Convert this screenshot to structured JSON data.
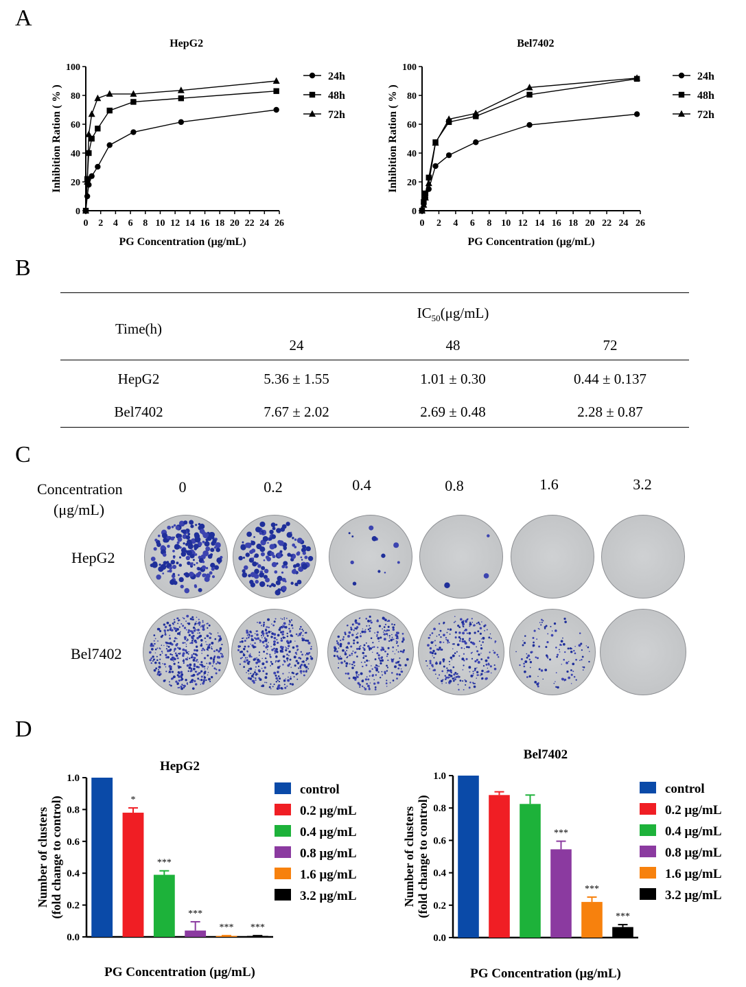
{
  "panels": {
    "a": "A",
    "b": "B",
    "c": "C",
    "d": "D"
  },
  "panel_a": {
    "ylabel": "Inhibition Ration ( % )",
    "xlabel": "PG Concentration (μg/mL)",
    "charts": [
      {
        "title": "HepG2",
        "series": [
          {
            "name": "24h",
            "marker": "circle",
            "x": [
              0,
              0.2,
              0.4,
              0.8,
              1.6,
              3.2,
              6.4,
              12.8,
              25.6
            ],
            "y": [
              0,
              10,
              18,
              24,
              30.5,
              45.5,
              54.5,
              61.5,
              70
            ]
          },
          {
            "name": "48h",
            "marker": "square",
            "x": [
              0,
              0.2,
              0.4,
              0.8,
              1.6,
              3.2,
              6.4,
              12.8,
              25.6
            ],
            "y": [
              0,
              22,
              40,
              50,
              57,
              69.5,
              75.5,
              78,
              83
            ]
          },
          {
            "name": "72h",
            "marker": "triangle",
            "x": [
              0,
              0.2,
              0.4,
              0.8,
              1.6,
              3.2,
              6.4,
              12.8,
              25.6
            ],
            "y": [
              0,
              20,
              53,
              67,
              78,
              81,
              81,
              83.5,
              90
            ]
          }
        ]
      },
      {
        "title": "Bel7402",
        "series": [
          {
            "name": "24h",
            "marker": "circle",
            "x": [
              0,
              0.2,
              0.4,
              0.8,
              1.6,
              3.2,
              6.4,
              12.8,
              25.6
            ],
            "y": [
              0,
              5,
              9,
              15,
              31,
              38.5,
              47.5,
              59.5,
              67
            ]
          },
          {
            "name": "48h",
            "marker": "square",
            "x": [
              0,
              0.2,
              0.4,
              0.8,
              1.6,
              3.2,
              6.4,
              12.8,
              25.6
            ],
            "y": [
              0,
              6,
              12,
              23,
              47.5,
              61.5,
              65.5,
              80.5,
              91.5
            ]
          },
          {
            "name": "72h",
            "marker": "triangle",
            "x": [
              0,
              0.2,
              0.4,
              0.8,
              1.6,
              3.2,
              6.4,
              12.8,
              25.6
            ],
            "y": [
              0,
              4,
              9,
              19,
              47,
              63.5,
              67.5,
              85.5,
              92
            ]
          }
        ]
      }
    ]
  },
  "table": {
    "row_header": "Time(h)",
    "group_header_main": "IC",
    "group_header_sub": "50",
    "group_header_unit": "(μg/mL)",
    "columns": [
      "24",
      "48",
      "72"
    ],
    "rows": [
      {
        "label": "HepG2",
        "values": [
          "5.36 ± 1.55",
          "1.01 ± 0.30",
          "0.44 ± 0.137"
        ]
      },
      {
        "label": "Bel7402",
        "values": [
          "7.67 ± 2.02",
          "2.69 ± 0.48",
          "2.28 ± 0.87"
        ]
      }
    ]
  },
  "colony": {
    "header_line1": "Concentration",
    "header_line2": "(μg/mL)",
    "concentrations": [
      "0",
      "0.2",
      "0.4",
      "0.8",
      "1.6",
      "3.2"
    ],
    "rows": [
      {
        "label": "HepG2",
        "colony_density": [
          180,
          150,
          12,
          3,
          0,
          0
        ],
        "dot_size": "large"
      },
      {
        "label": "Bel7402",
        "colony_density": [
          420,
          380,
          300,
          260,
          120,
          0
        ],
        "dot_size": "small"
      }
    ]
  },
  "chart_data": [
    {
      "type": "line",
      "title": "HepG2",
      "xlabel": "PG Concentration (μg/mL)",
      "ylabel": "Inhibition Ration ( % )",
      "xlim": [
        0,
        26
      ],
      "ylim": [
        0,
        100
      ],
      "xticks": [
        0,
        2,
        4,
        6,
        8,
        10,
        12,
        14,
        16,
        18,
        20,
        22,
        24,
        26
      ],
      "yticks": [
        0,
        20,
        40,
        60,
        80,
        100
      ],
      "legend": "right",
      "series_ref": "panel_a.charts.0.series"
    },
    {
      "type": "line",
      "title": "Bel7402",
      "xlabel": "PG Concentration (μg/mL)",
      "ylabel": "Inhibition Ration ( % )",
      "xlim": [
        0,
        26
      ],
      "ylim": [
        0,
        100
      ],
      "xticks": [
        0,
        2,
        4,
        6,
        8,
        10,
        12,
        14,
        16,
        18,
        20,
        22,
        24,
        26
      ],
      "yticks": [
        0,
        20,
        40,
        60,
        80,
        100
      ],
      "legend": "right",
      "series_ref": "panel_a.charts.1.series"
    },
    {
      "type": "bar",
      "title": "HepG2",
      "xlabel": "PG Concentration (μg/mL)",
      "ylabel_line1": "Number of clusters",
      "ylabel_line2": "(fold change to control)",
      "ylim": [
        0,
        1.0
      ],
      "yticks": [
        "0.0",
        "0.2",
        "0.4",
        "0.6",
        "0.8",
        "1.0"
      ],
      "categories": [
        "control",
        "0.2 μg/mL",
        "0.4 μg/mL",
        "0.8 μg/mL",
        "1.6 μg/mL",
        "3.2 μg/mL"
      ],
      "values": [
        1.0,
        0.78,
        0.39,
        0.04,
        0.005,
        0.005
      ],
      "errors": [
        0,
        0.03,
        0.025,
        0.055,
        0.003,
        0.003
      ],
      "significance": [
        "",
        "*",
        "***",
        "***",
        "***",
        "***"
      ],
      "colors": [
        "#0a4aa8",
        "#f01e24",
        "#1db23a",
        "#8b3aa0",
        "#f7810d",
        "#000000"
      ],
      "legend": "right"
    },
    {
      "type": "bar",
      "title": "Bel7402",
      "xlabel": "PG Concentration (μg/mL)",
      "ylabel_line1": "Number of clusters",
      "ylabel_line2": "(fold change to control)",
      "ylim": [
        0,
        1.0
      ],
      "yticks": [
        "0.0",
        "0.2",
        "0.4",
        "0.6",
        "0.8",
        "1.0"
      ],
      "categories": [
        "control",
        "0.2 μg/mL",
        "0.4 μg/mL",
        "0.8 μg/mL",
        "1.6 μg/mL",
        "3.2 μg/mL"
      ],
      "values": [
        1.0,
        0.88,
        0.825,
        0.545,
        0.22,
        0.065
      ],
      "errors": [
        0,
        0.02,
        0.055,
        0.05,
        0.03,
        0.015
      ],
      "significance": [
        "",
        "",
        "",
        "***",
        "***",
        "***"
      ],
      "colors": [
        "#0a4aa8",
        "#f01e24",
        "#1db23a",
        "#8b3aa0",
        "#f7810d",
        "#000000"
      ],
      "legend": "right"
    }
  ]
}
